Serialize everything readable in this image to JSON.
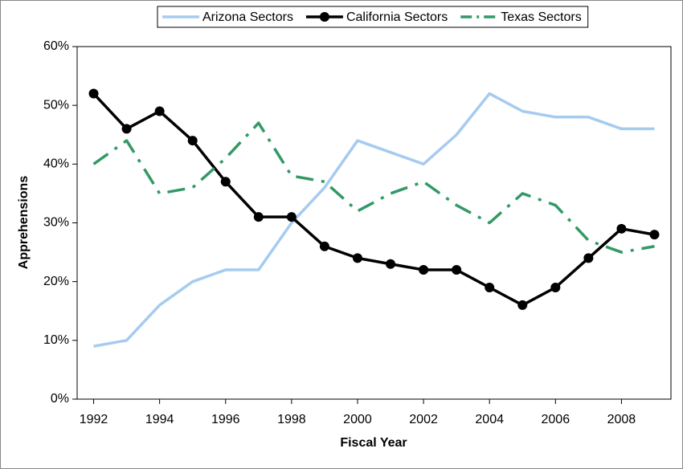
{
  "chart_data": {
    "type": "line",
    "xlabel": "Fiscal Year",
    "ylabel": "Apprehensions",
    "x": [
      1992,
      1993,
      1994,
      1995,
      1996,
      1997,
      1998,
      1999,
      2000,
      2001,
      2002,
      2003,
      2004,
      2005,
      2006,
      2007,
      2008,
      2009
    ],
    "xlim": [
      1991.5,
      2009.5
    ],
    "xticks": [
      1992,
      1994,
      1996,
      1998,
      2000,
      2002,
      2004,
      2006,
      2008
    ],
    "ylim": [
      0,
      60
    ],
    "yticks": [
      {
        "value": 0,
        "label": "0%"
      },
      {
        "value": 10,
        "label": "10%"
      },
      {
        "value": 20,
        "label": "20%"
      },
      {
        "value": 30,
        "label": "30%"
      },
      {
        "value": 40,
        "label": "40%"
      },
      {
        "value": 50,
        "label": "50%"
      },
      {
        "value": 60,
        "label": "60%"
      }
    ],
    "grid": false,
    "legend": "top",
    "series": [
      {
        "name": "Arizona Sectors",
        "color": "#a6cbf0",
        "style": "solid",
        "marker": "none",
        "values": [
          9,
          10,
          16,
          20,
          22,
          22,
          30,
          36,
          44,
          42,
          40,
          45,
          52,
          49,
          48,
          48,
          46,
          46
        ]
      },
      {
        "name": "California Sectors",
        "color": "#000000",
        "style": "solid",
        "marker": "circle",
        "values": [
          52,
          46,
          49,
          44,
          37,
          31,
          31,
          26,
          24,
          23,
          22,
          22,
          19,
          16,
          19,
          24,
          29,
          28
        ]
      },
      {
        "name": "Texas Sectors",
        "color": "#339966",
        "style": "dashdot",
        "marker": "none",
        "values": [
          40,
          44,
          35,
          36,
          41,
          47,
          38,
          37,
          32,
          35,
          37,
          33,
          30,
          35,
          33,
          27,
          25,
          26
        ]
      }
    ]
  }
}
